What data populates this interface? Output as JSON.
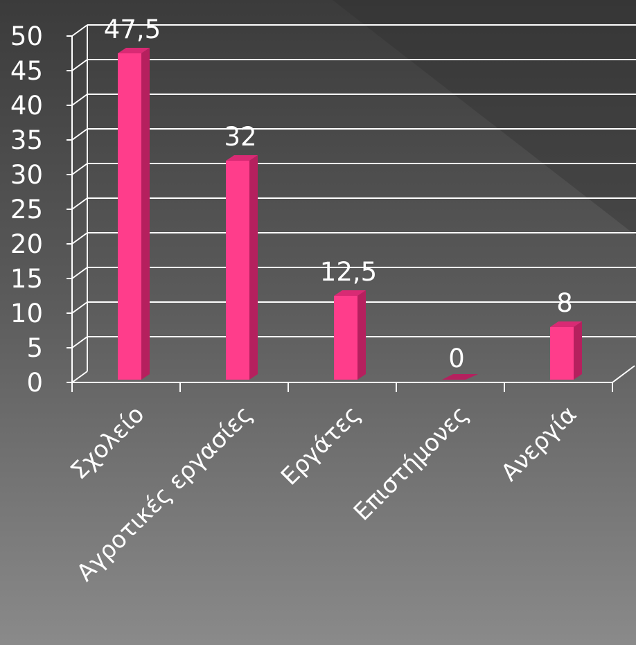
{
  "chart_data": {
    "type": "bar",
    "categories": [
      "Σχολείο",
      "Αγροτικές εργασίες",
      "Εργάτες",
      "Επιστήμονες",
      "Ανεργία"
    ],
    "values": [
      47.5,
      32,
      12.5,
      0,
      8
    ],
    "data_labels": [
      "47,5",
      "32",
      "12,5",
      "0",
      "8"
    ],
    "yticks": [
      "0",
      "5",
      "10",
      "15",
      "20",
      "25",
      "30",
      "35",
      "40",
      "45",
      "50"
    ],
    "ylim": [
      0,
      50
    ],
    "grid": true,
    "legend": "none",
    "three_d": true
  },
  "colors": {
    "bar_front": "#ff3d8b",
    "bar_side": "#b5205e",
    "bar_top": "#d92a74",
    "grid": "#ffffff",
    "text": "#ffffff",
    "background_top": "#3b3b3b",
    "background_bottom": "#8a8a8a"
  }
}
